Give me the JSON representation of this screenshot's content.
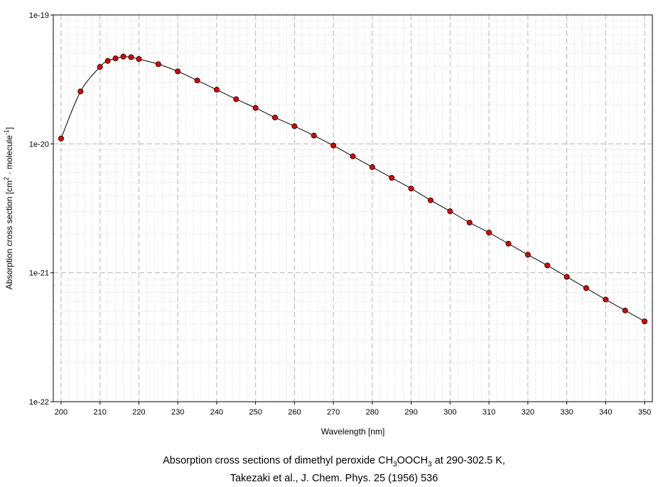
{
  "chart_data": {
    "type": "line",
    "line_color": "#000000",
    "marker_fill": "#e00000",
    "marker_stroke": "#000000",
    "xlabel": "Wavelength [nm]",
    "ylabel": {
      "prefix": "Absorption cross section [cm",
      "sup1": "2",
      "mid": " · molecule",
      "sup2": "-1",
      "suffix": "]"
    },
    "xlim": [
      198,
      352
    ],
    "ylim": [
      1e-22,
      1e-19
    ],
    "yscale": "log",
    "grid": true,
    "x_ticks": [
      "200",
      "210",
      "220",
      "230",
      "240",
      "250",
      "260",
      "270",
      "280",
      "290",
      "300",
      "310",
      "320",
      "330",
      "340",
      "350"
    ],
    "y_ticks": [
      "1e-22",
      "1e-21",
      "1e-20",
      "1e-19"
    ],
    "series": [
      {
        "x": [
          200,
          205,
          210,
          212,
          214,
          216,
          218,
          220,
          225,
          230,
          235,
          240,
          245,
          250,
          255,
          260,
          265,
          270,
          275,
          280,
          285,
          290,
          295,
          300,
          305,
          310,
          315,
          320,
          325,
          330,
          335,
          340,
          345,
          350
        ],
        "y": [
          1.1e-20,
          2.55e-20,
          3.95e-20,
          4.4e-20,
          4.6e-20,
          4.75e-20,
          4.7e-20,
          4.55e-20,
          4.15e-20,
          3.65e-20,
          3.1e-20,
          2.63e-20,
          2.22e-20,
          1.9e-20,
          1.6e-20,
          1.37e-20,
          1.16e-20,
          9.7e-21,
          8e-21,
          6.6e-21,
          5.45e-21,
          4.5e-21,
          3.65e-21,
          3e-21,
          2.45e-21,
          2.05e-21,
          1.68e-21,
          1.38e-21,
          1.14e-21,
          9.3e-22,
          7.6e-22,
          6.2e-22,
          5.1e-22,
          4.2e-22
        ]
      }
    ]
  },
  "caption": {
    "line1_prefix": "Absorption cross sections of dimethyl peroxide CH",
    "sub1": "3",
    "line1_mid": "OOCH",
    "sub2": "3",
    "line1_suffix": " at 290-302.5 K,",
    "line2": "Takezaki et al., J. Chem. Phys. 25 (1956) 536"
  }
}
